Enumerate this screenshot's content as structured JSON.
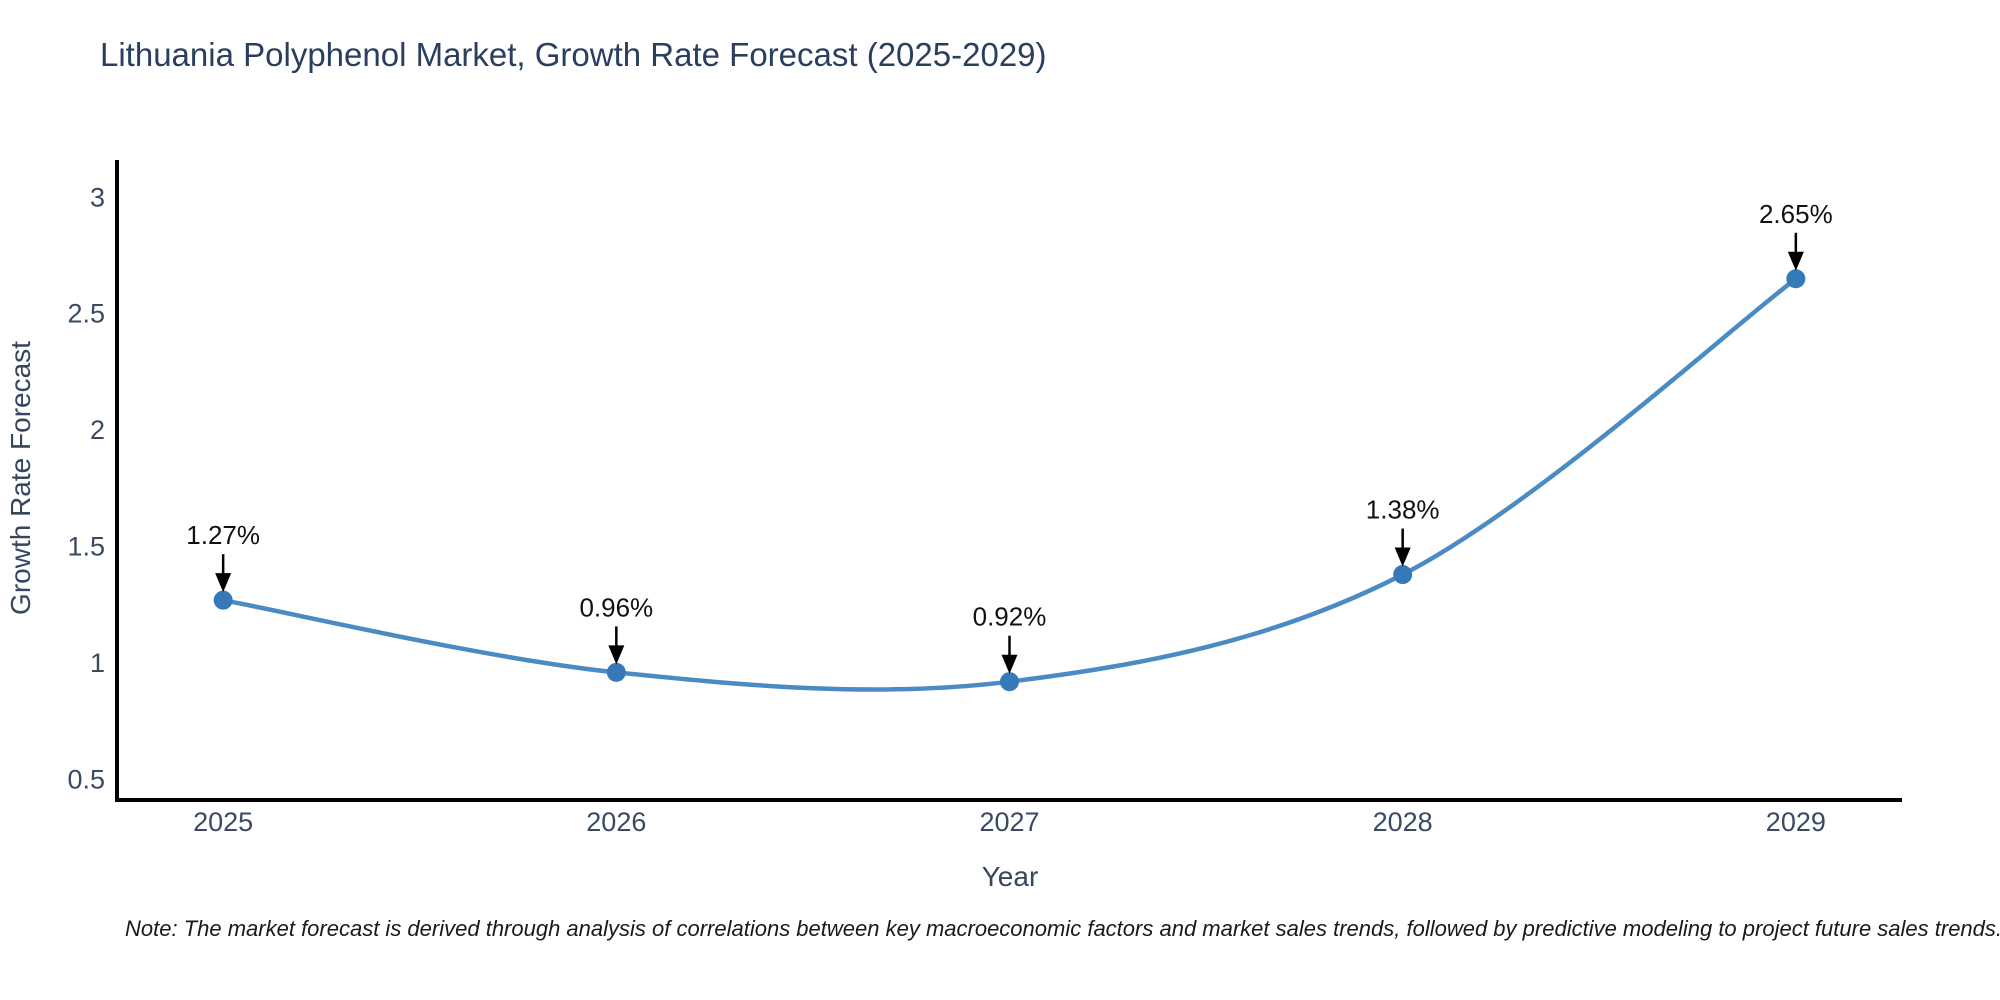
{
  "chart_data": {
    "type": "line",
    "title": "Lithuania Polyphenol Market, Growth Rate Forecast (2025-2029)",
    "xlabel": "Year",
    "ylabel": "Growth Rate Forecast",
    "categories": [
      "2025",
      "2026",
      "2027",
      "2028",
      "2029"
    ],
    "x": [
      2025,
      2026,
      2027,
      2028,
      2029
    ],
    "values": [
      1.27,
      0.96,
      0.92,
      1.38,
      2.65
    ],
    "point_labels": [
      "1.27%",
      "0.96%",
      "0.92%",
      "1.38%",
      "2.65%"
    ],
    "yticks": [
      0.5,
      1,
      1.5,
      2,
      2.5,
      3
    ],
    "ytick_labels": [
      "0.5",
      "1",
      "1.5",
      "2",
      "2.5",
      "3"
    ],
    "ylim": [
      0.412,
      3.16
    ],
    "xlim": [
      2024.73,
      2029.27
    ],
    "grid": false,
    "legend": "none",
    "line_shape": "spline",
    "line_color": "#4a8bc4",
    "marker_color": "#3579b8",
    "axis_color": "#000000",
    "annotation_arrow_color": "#000000"
  },
  "note": "Note: The market forecast is derived through analysis of correlations between key macroeconomic factors and market sales trends, followed by predictive modeling to project future sales trends.",
  "colors": {
    "title": "#2a3f5f",
    "tick": "#3b4a63",
    "note": "#1a1a1a",
    "background": "#ffffff"
  }
}
